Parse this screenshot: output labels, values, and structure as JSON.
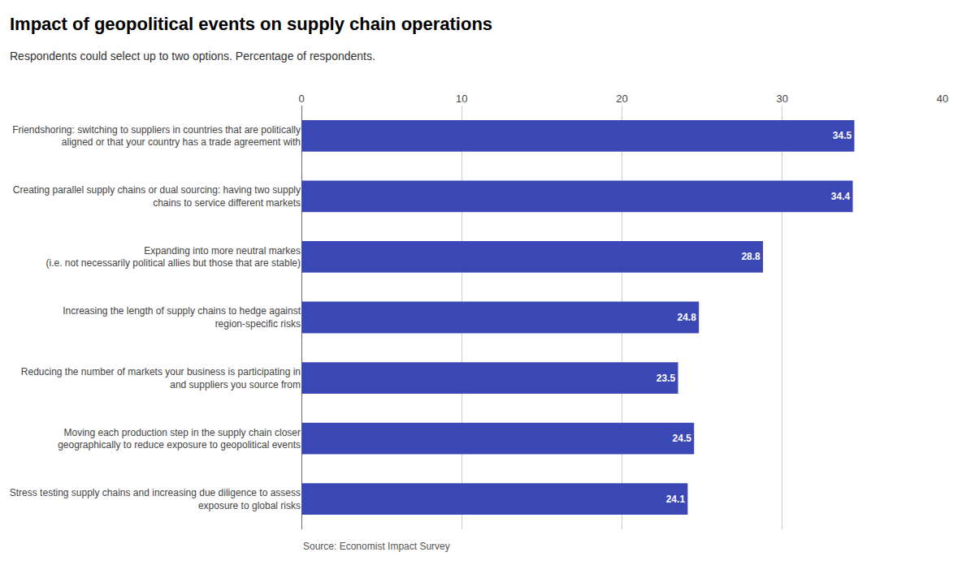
{
  "chart_data": {
    "type": "bar",
    "title": "Impact of geopolitical events on supply chain operations",
    "subtitle": "Respondents could select up to two options. Percentage of respondents.",
    "annotations": [
      "Source: Economist Impact Survey"
    ],
    "orientation": "horizontal",
    "categories": [
      "Friendshoring: switching to suppliers in countries that are politically\naligned or that your country has a trade agreement with",
      "Creating parallel supply chains or dual sourcing: having two supply\nchains to service different markets",
      "Expanding into more neutral markes\n(i.e. not necessarily political allies but those that are stable)",
      "Increasing the length of supply chains to hedge against\nregion-specific risks",
      "Reducing the number of markets your business is participating in\nand suppliers you source from",
      "Moving each production step in the supply chain closer\ngeographically to reduce exposure to geopolitical events",
      "Stress testing supply chains and increasing due diligence to assess\nexposure to global risks"
    ],
    "values": [
      34.5,
      34.4,
      28.8,
      24.8,
      23.5,
      24.5,
      24.1
    ],
    "color": "#3a47b5",
    "data_labels": true,
    "xlim": [
      0,
      40
    ],
    "xticks": [
      0,
      10,
      20,
      30,
      40
    ],
    "grid": true
  }
}
